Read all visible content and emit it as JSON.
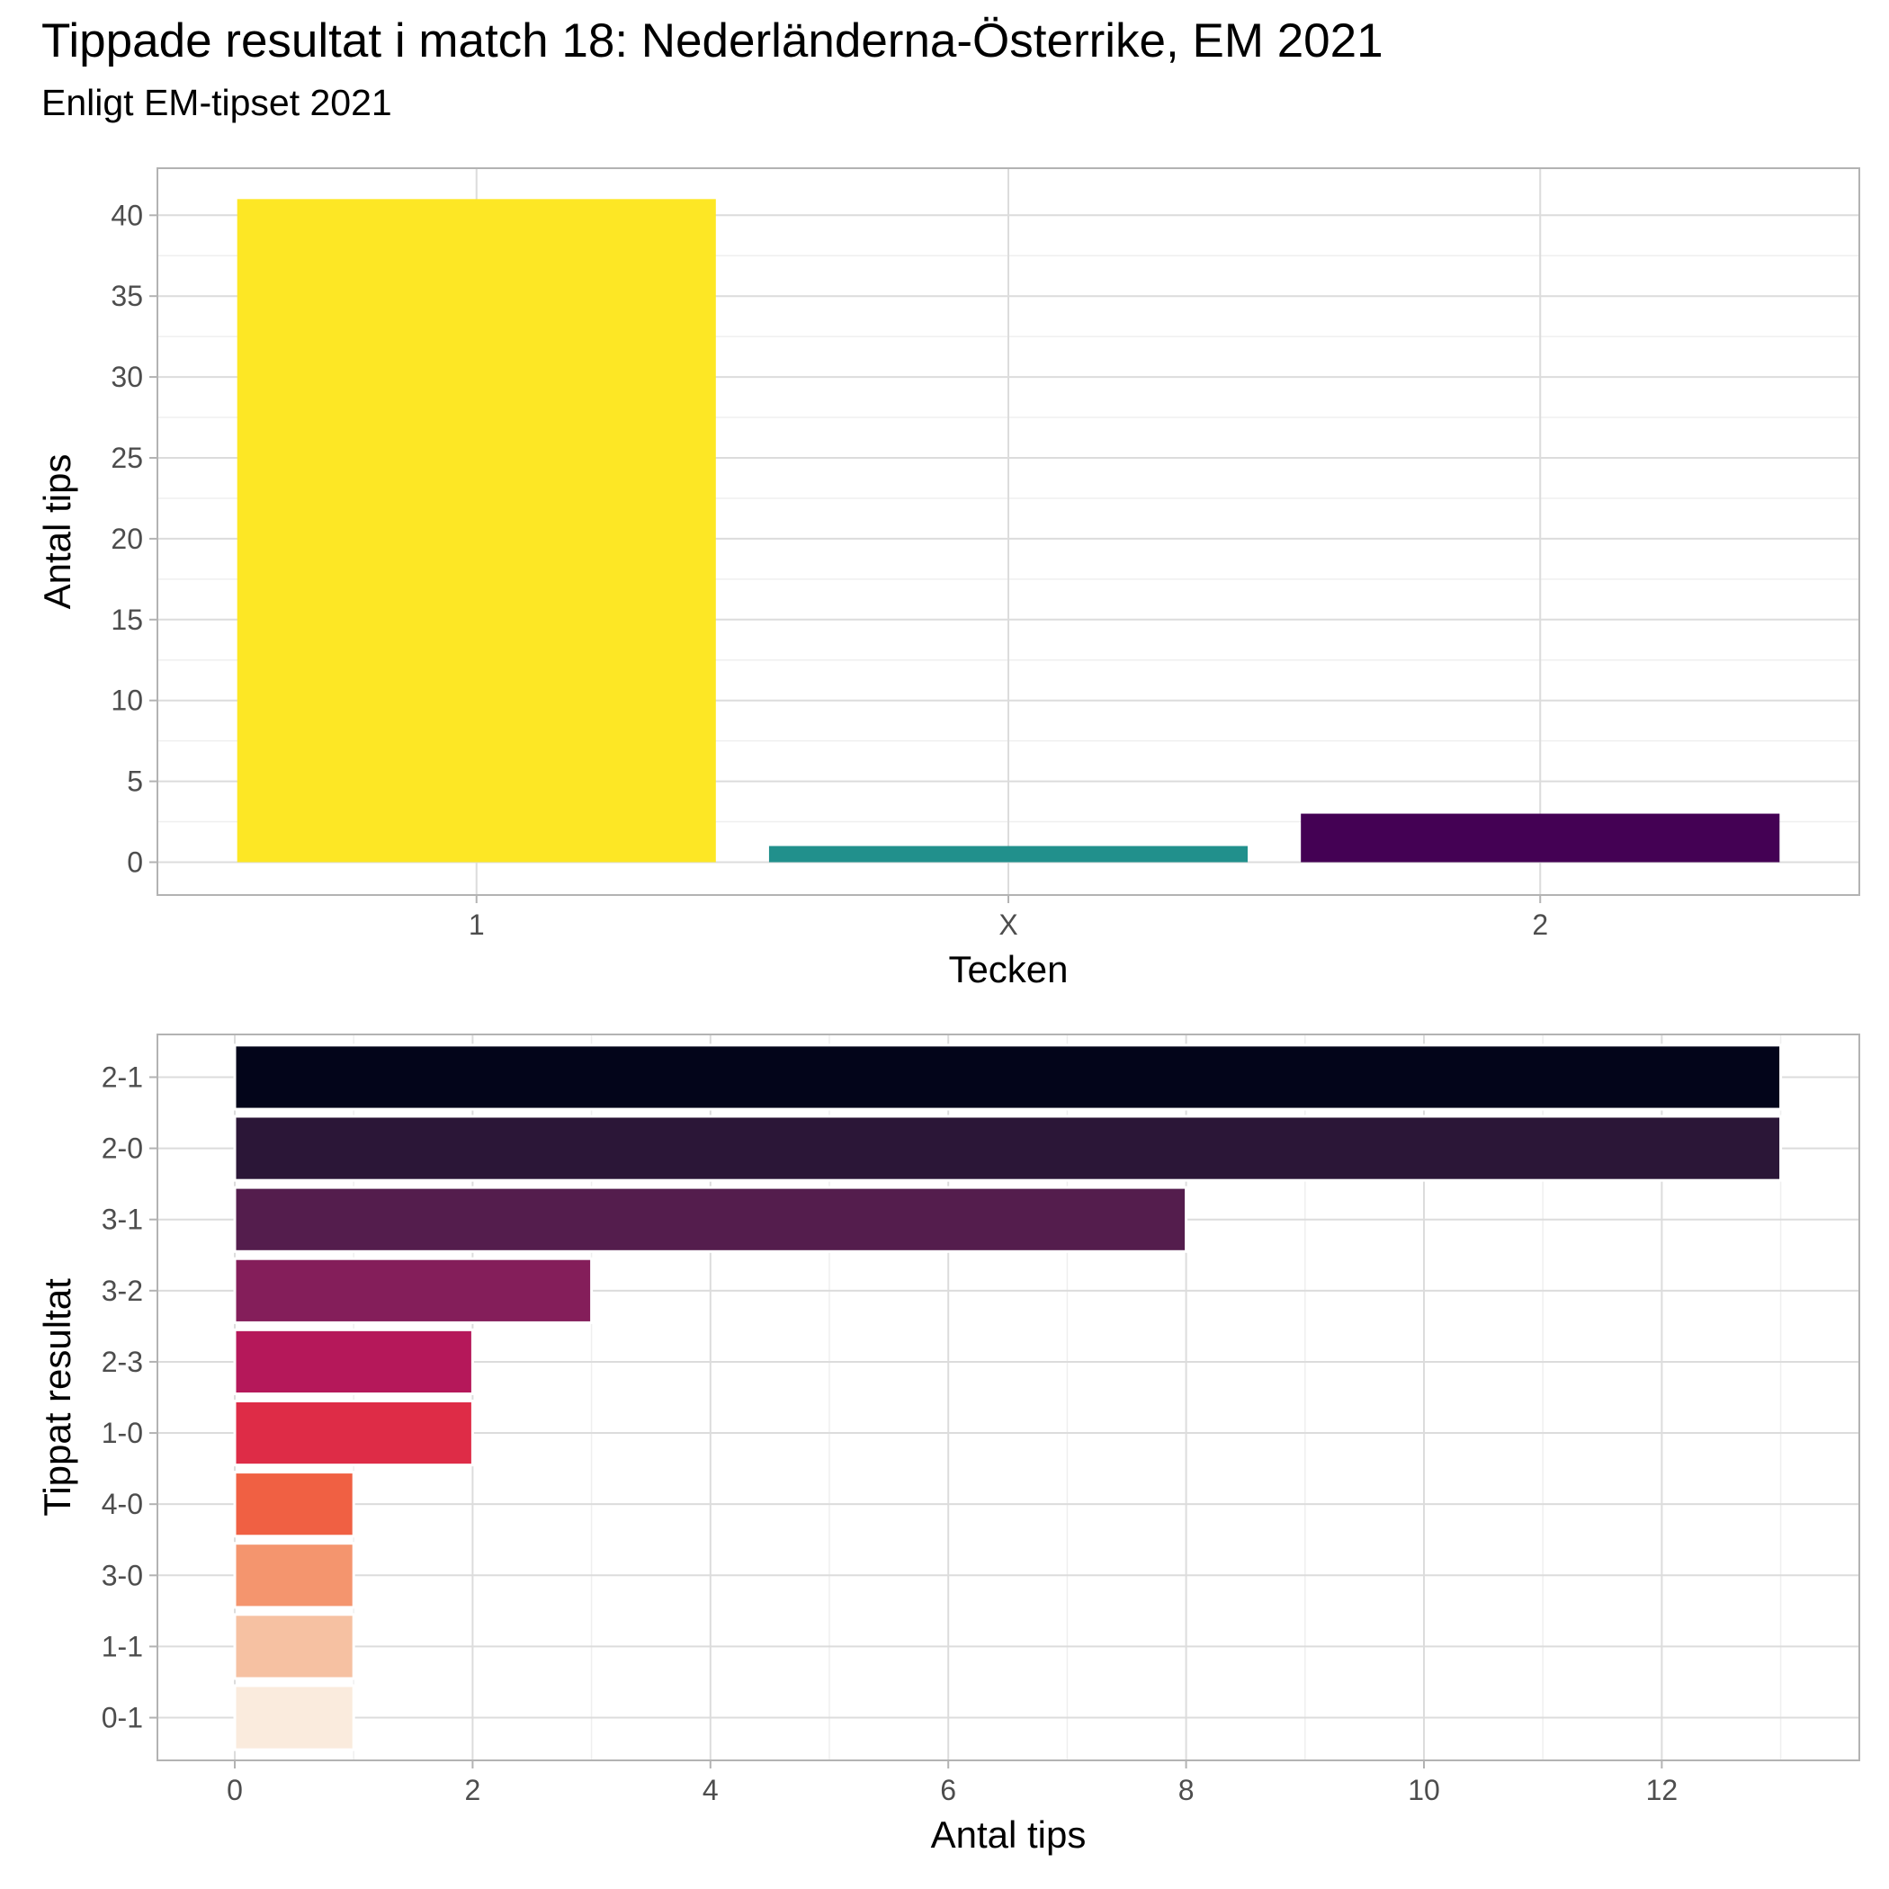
{
  "title": "Tippade resultat i match 18: Nederländerna-Österrike, EM 2021",
  "subtitle": "Enligt EM-tipset 2021",
  "chart_data": [
    {
      "type": "bar",
      "orientation": "vertical",
      "categories": [
        "1",
        "X",
        "2"
      ],
      "values": [
        41,
        1,
        3
      ],
      "colors": [
        "#FDE725",
        "#21908C",
        "#440154"
      ],
      "xlabel": "Tecken",
      "ylabel": "Antal tips",
      "ylim": [
        0,
        41
      ],
      "yticks": [
        0,
        5,
        10,
        15,
        20,
        25,
        30,
        35,
        40
      ],
      "grid": true
    },
    {
      "type": "bar",
      "orientation": "horizontal",
      "categories": [
        "2-1",
        "2-0",
        "3-1",
        "3-2",
        "2-3",
        "1-0",
        "4-0",
        "3-0",
        "1-1",
        "0-1"
      ],
      "values": [
        13,
        13,
        8,
        3,
        2,
        2,
        1,
        1,
        1,
        1
      ],
      "colors": [
        "#03051A",
        "#2B1637",
        "#541D4D",
        "#841E5A",
        "#B5185A",
        "#DE2C47",
        "#F06043",
        "#F4956E",
        "#F6C1A2",
        "#FAEBDD"
      ],
      "xlabel": "Antal tips",
      "ylabel": "Tippat resultat",
      "xlim": [
        0,
        13
      ],
      "xticks": [
        0,
        2,
        4,
        6,
        8,
        10,
        12
      ],
      "grid": true
    }
  ]
}
